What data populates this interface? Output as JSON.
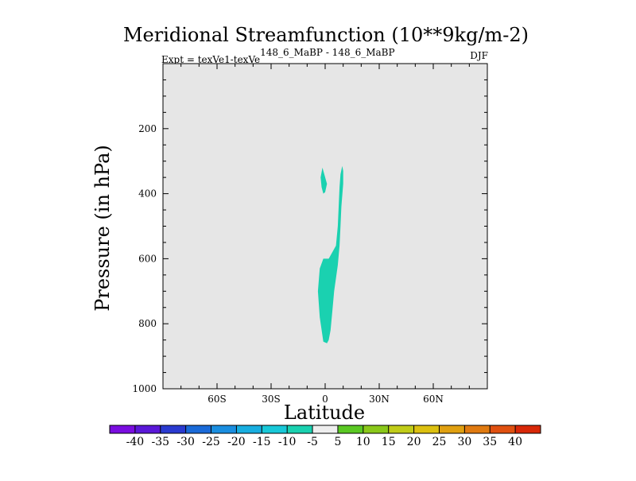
{
  "chart_data": {
    "type": "filled-contour",
    "title": "Meridional Streamfunction (10**9kg/m-2)",
    "subtitle_left_prefix": "Expt = texVe1-texVe",
    "subtitle_left_superscript": "148_6_MaBP - 148_6_MaBP",
    "subtitle_right": "DJF",
    "xlabel": "Latitude",
    "ylabel": "Pressure (in hPa)",
    "xlim": [
      -90,
      90
    ],
    "ylim": [
      1000,
      0
    ],
    "x_ticks": [
      {
        "value": -60,
        "label": "60S"
      },
      {
        "value": -30,
        "label": "30S"
      },
      {
        "value": 0,
        "label": "0"
      },
      {
        "value": 30,
        "label": "30N"
      },
      {
        "value": 60,
        "label": "60N"
      }
    ],
    "y_ticks": [
      {
        "value": 200,
        "label": "200"
      },
      {
        "value": 400,
        "label": "400"
      },
      {
        "value": 600,
        "label": "600"
      },
      {
        "value": 800,
        "label": "800"
      },
      {
        "value": 1000,
        "label": "1000"
      }
    ],
    "background_level": "-5 to 5",
    "filled_regions": [
      {
        "level": "-10 to -5",
        "color": "#1ad1b0",
        "outline": [
          [
            9.5,
            315
          ],
          [
            10,
            330
          ],
          [
            10,
            370
          ],
          [
            9,
            440
          ],
          [
            8.5,
            500
          ],
          [
            8,
            560
          ],
          [
            7,
            620
          ],
          [
            5,
            700
          ],
          [
            4,
            760
          ],
          [
            3,
            820
          ],
          [
            2,
            850
          ],
          [
            1,
            860
          ],
          [
            -1,
            855
          ],
          [
            -3,
            780
          ],
          [
            -4,
            700
          ],
          [
            -3,
            630
          ],
          [
            -1,
            600
          ],
          [
            2,
            600
          ],
          [
            6,
            560
          ],
          [
            7,
            500
          ],
          [
            7.5,
            440
          ],
          [
            8,
            380
          ],
          [
            8.5,
            340
          ]
        ]
      },
      {
        "level": "-10 to -5",
        "color": "#1ad1b0",
        "outline": [
          [
            -1.5,
            320
          ],
          [
            -0.5,
            340
          ],
          [
            1,
            370
          ],
          [
            0,
            395
          ],
          [
            -1,
            400
          ],
          [
            -2,
            380
          ],
          [
            -2.5,
            350
          ]
        ]
      }
    ],
    "colorbar": {
      "labels": [
        "-40",
        "-35",
        "-30",
        "-25",
        "-20",
        "-15",
        "-10",
        "-5",
        "5",
        "10",
        "15",
        "20",
        "25",
        "30",
        "35",
        "40"
      ],
      "colors": [
        "#7a0de0",
        "#5a18d8",
        "#2a3ad0",
        "#1a6ad8",
        "#1a8ee0",
        "#18aee0",
        "#18c8d8",
        "#1ad1b0",
        "#eeeeee",
        "#5ac823",
        "#8ac81a",
        "#c0cc18",
        "#dcc010",
        "#e0a010",
        "#e07a10",
        "#e05010",
        "#d82808"
      ],
      "background_color": "#e6e6e6"
    }
  }
}
